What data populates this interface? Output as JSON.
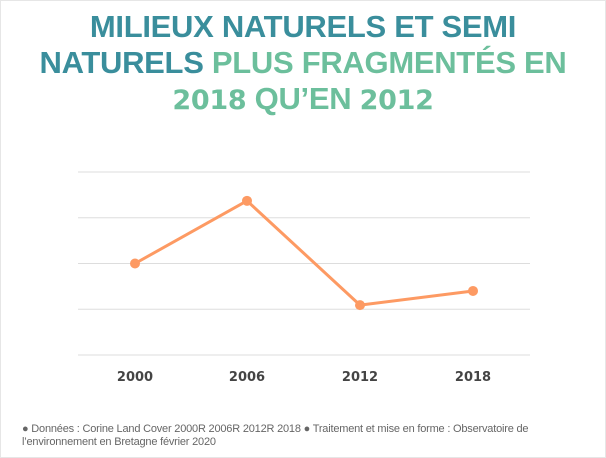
{
  "title": {
    "line1": "MILIEUX NATURELS ET SEMI",
    "line2_a": "NATURELS",
    "line2_b": "PLUS FRAGMENTÉS EN",
    "line3_a": "2018",
    "line3_b": "QU’EN",
    "line3_c": "2012",
    "colors": {
      "primary": "#3a8e9c",
      "accent": "#6cbf9c"
    }
  },
  "chart_data": {
    "type": "line",
    "categories": [
      "2000",
      "2006",
      "2012",
      "2018"
    ],
    "series": [
      {
        "values": [
          2.0,
          3.37,
          1.09,
          1.4
        ],
        "color": "#fd9a63"
      }
    ],
    "ylim": [
      0,
      4
    ],
    "yticks_labelled": false,
    "grid": true,
    "legend": "none",
    "xlabel": "",
    "ylabel": ""
  },
  "footer": {
    "text_line1": "● Données : Corine Land Cover 2000R 2006R 2012R 2018 ● Traitement et mise en forme : Observatoire de",
    "text_line2": "l’environnement en Bretagne février 2020"
  }
}
